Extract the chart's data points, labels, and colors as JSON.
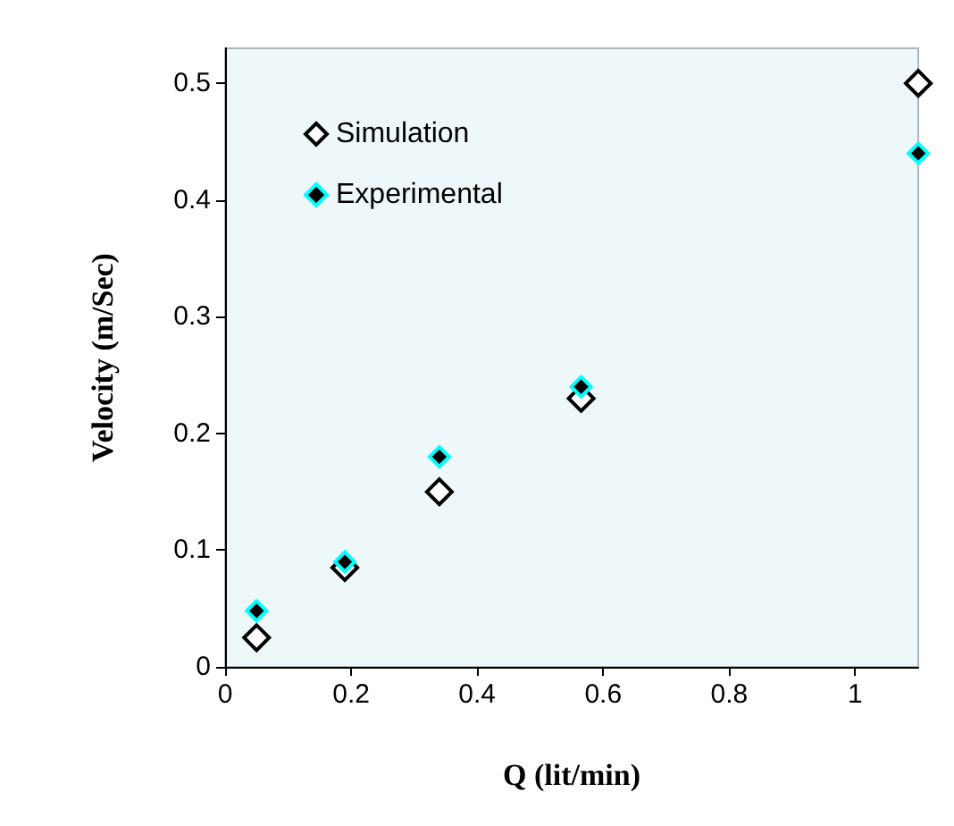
{
  "chart_data": {
    "type": "scatter",
    "xlabel": "Q (lit/min)",
    "ylabel": "Velocity (m/Sec)",
    "x": [
      0.05,
      0.19,
      0.34,
      0.565,
      1.1
    ],
    "series": [
      {
        "name": "Simulation",
        "color": "#000000",
        "values": [
          0.025,
          0.085,
          0.15,
          0.23,
          0.5
        ]
      },
      {
        "name": "Experimental",
        "color": "#00ffff",
        "values": [
          0.048,
          0.09,
          0.18,
          0.24,
          0.44
        ]
      }
    ],
    "xlim": [
      0,
      1.1
    ],
    "xticks": [
      0,
      0.2,
      0.4,
      0.6,
      0.8,
      1
    ],
    "ylim": [
      0,
      0.53
    ],
    "yticks": [
      0,
      0.1,
      0.2,
      0.3,
      0.4,
      0.5
    ],
    "grid": false,
    "legend": "top left",
    "marker": "diamond"
  }
}
